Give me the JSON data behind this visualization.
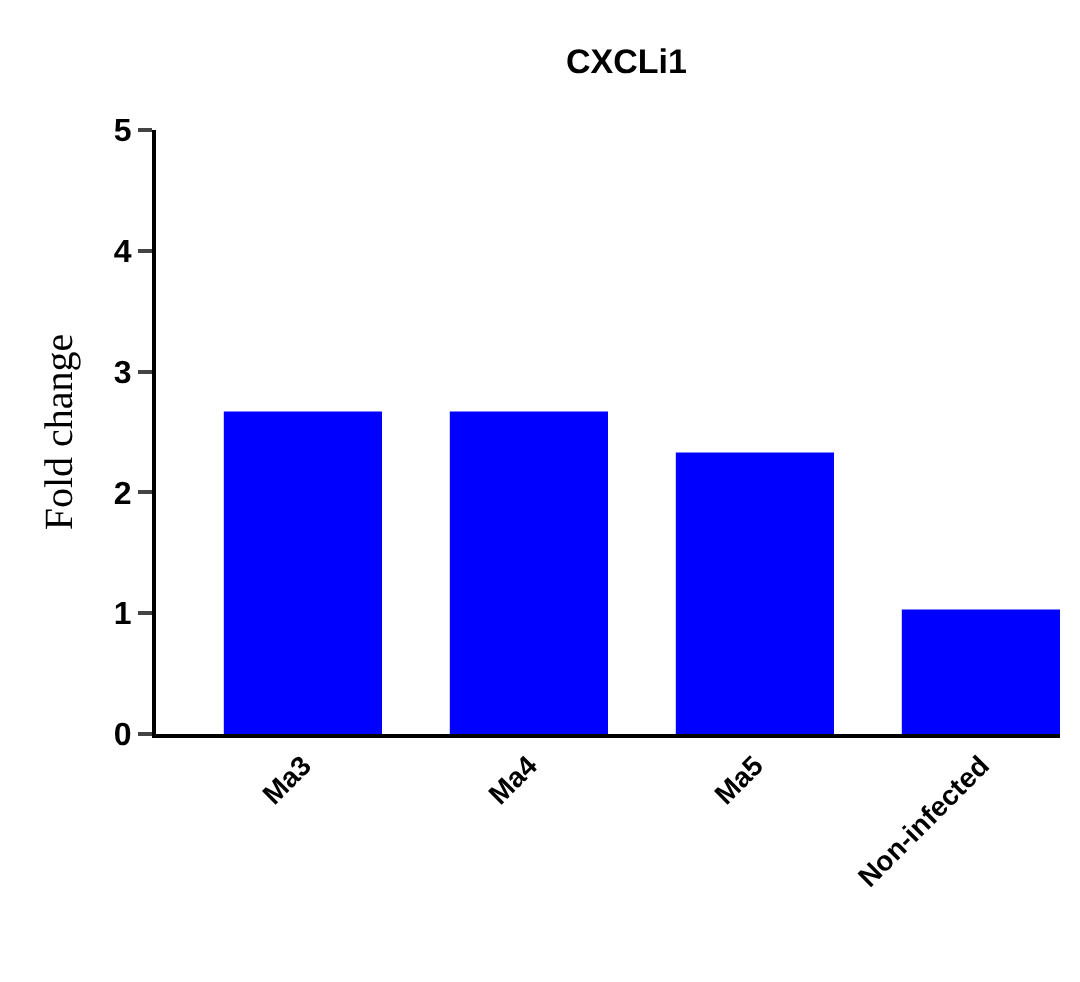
{
  "chart_data": {
    "type": "bar",
    "title": "CXCLi1",
    "ylabel": "Fold change",
    "categories": [
      "Ma3",
      "Ma4",
      "Ma5",
      "Non-infected"
    ],
    "values": [
      2.67,
      2.67,
      2.33,
      1.03
    ],
    "color": "#0000ff",
    "ylim": [
      0,
      5
    ],
    "yticks": [
      0,
      1,
      2,
      3,
      4,
      5
    ],
    "legend": false
  }
}
